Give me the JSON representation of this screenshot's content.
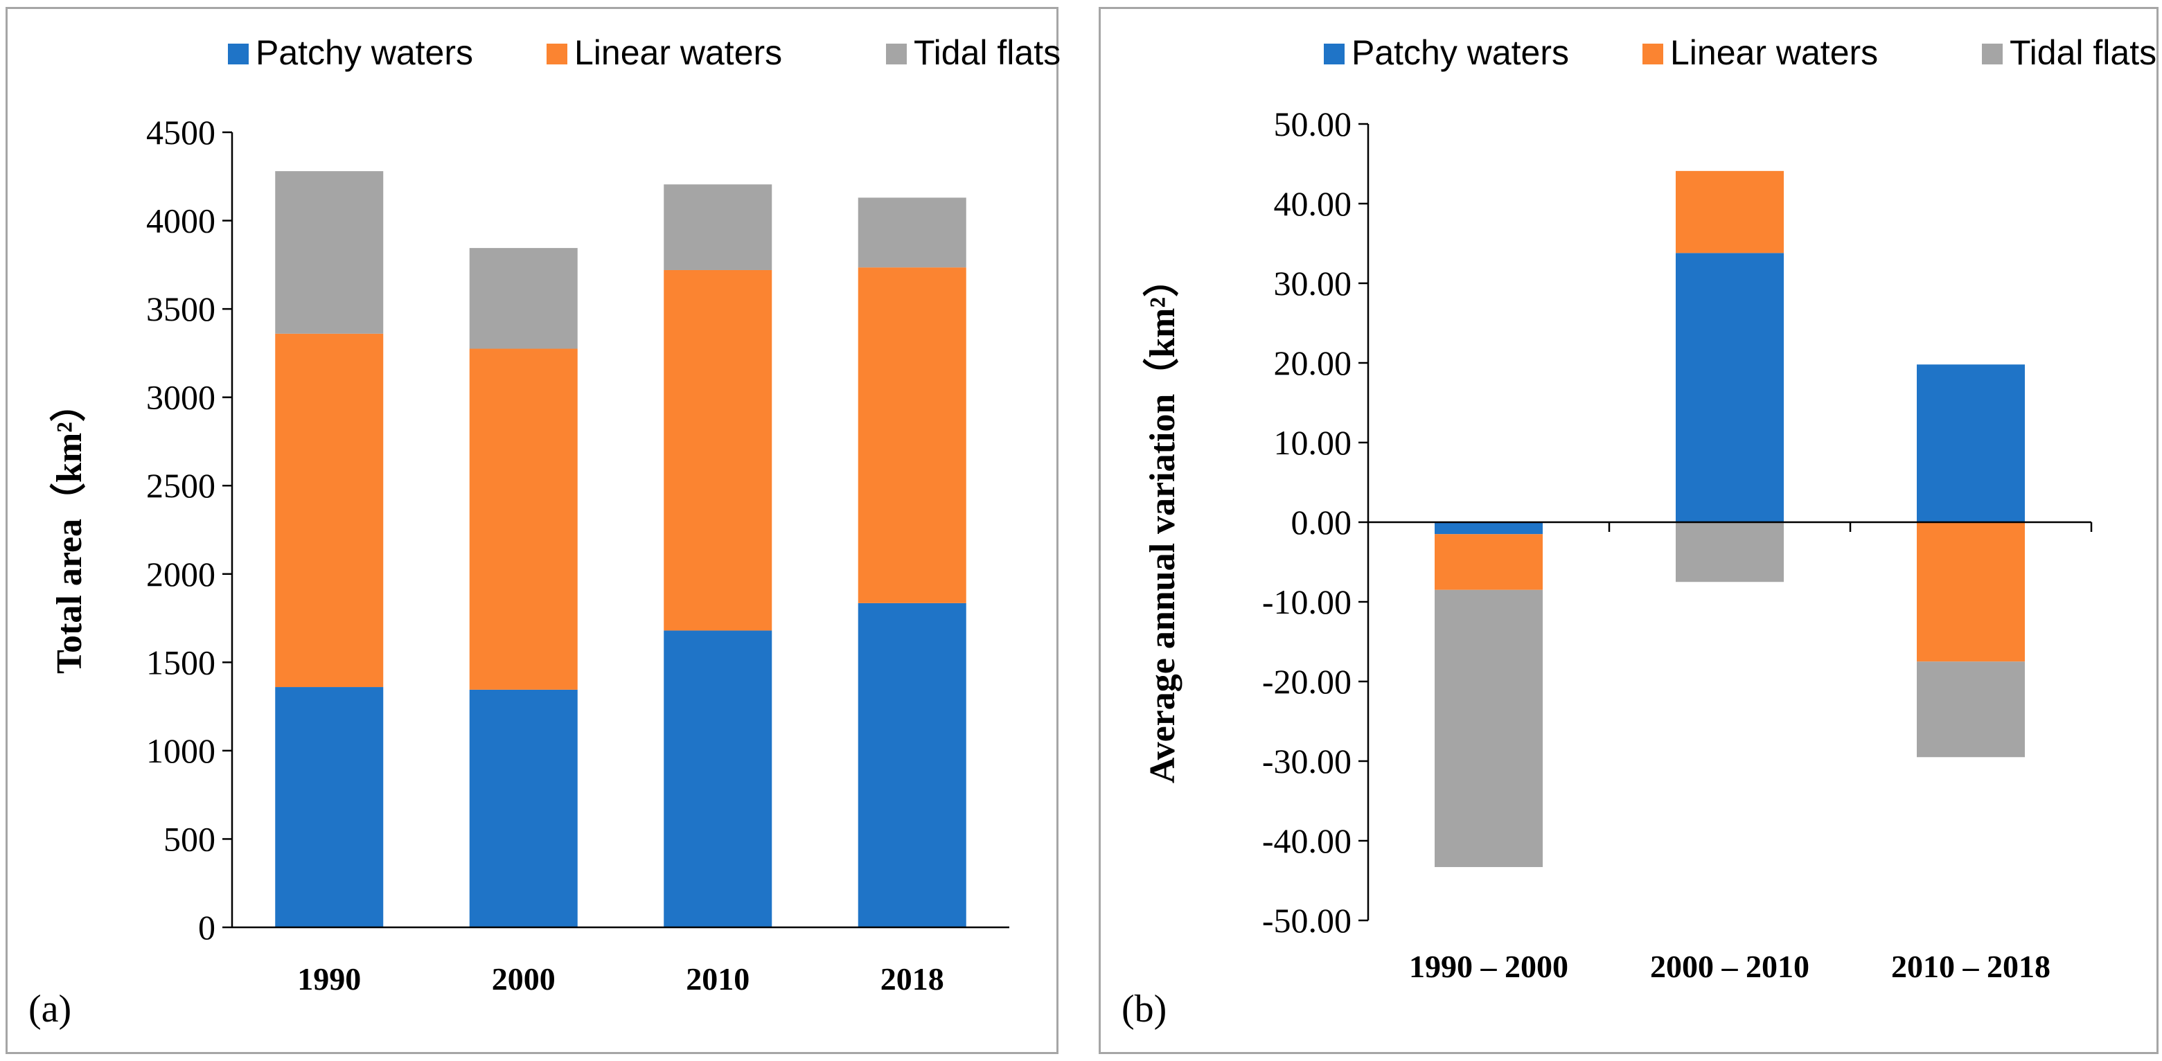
{
  "colors": {
    "patchy": "#1f74c7",
    "linear": "#fb8431",
    "tidal": "#a5a5a5"
  },
  "chart_data": [
    {
      "panel": "(a)",
      "type": "bar",
      "stacked": true,
      "ylabel": "Total area（km²）",
      "ylim": [
        0,
        4500
      ],
      "yticks": [
        "0",
        "500",
        "1000",
        "1500",
        "2000",
        "2500",
        "3000",
        "3500",
        "4000",
        "4500"
      ],
      "categories": [
        "1990",
        "2000",
        "2010",
        "2018"
      ],
      "legend": [
        "Patchy waters",
        "Linear waters",
        "Tidal flats"
      ],
      "legend_position": "top-right",
      "series": [
        {
          "name": "Patchy waters",
          "values": [
            1360,
            1345,
            1680,
            1835
          ]
        },
        {
          "name": "Linear waters",
          "values": [
            2000,
            1930,
            2040,
            1900
          ]
        },
        {
          "name": "Tidal flats",
          "values": [
            920,
            570,
            485,
            395
          ]
        }
      ]
    },
    {
      "panel": "(b)",
      "type": "bar",
      "stacked": true,
      "ylabel": "Average annual variation（km²）",
      "ylim": [
        -50,
        50
      ],
      "yticks": [
        "-50.00",
        "-40.00",
        "-30.00",
        "-20.00",
        "-10.00",
        "0.00",
        "10.00",
        "20.00",
        "30.00",
        "40.00",
        "50.00"
      ],
      "categories": [
        "1990 – 2000",
        "2000 – 2010",
        "2010 – 2018"
      ],
      "legend": [
        "Patchy waters",
        "Linear waters",
        "Tidal flats"
      ],
      "legend_position": "top-right",
      "series": [
        {
          "name": "Patchy waters",
          "values": [
            -1.5,
            33.8,
            19.8
          ]
        },
        {
          "name": "Linear waters",
          "values": [
            -7.0,
            10.3,
            -17.5
          ]
        },
        {
          "name": "Tidal flats",
          "values": [
            -34.8,
            -7.5,
            -12.0
          ]
        }
      ]
    }
  ]
}
